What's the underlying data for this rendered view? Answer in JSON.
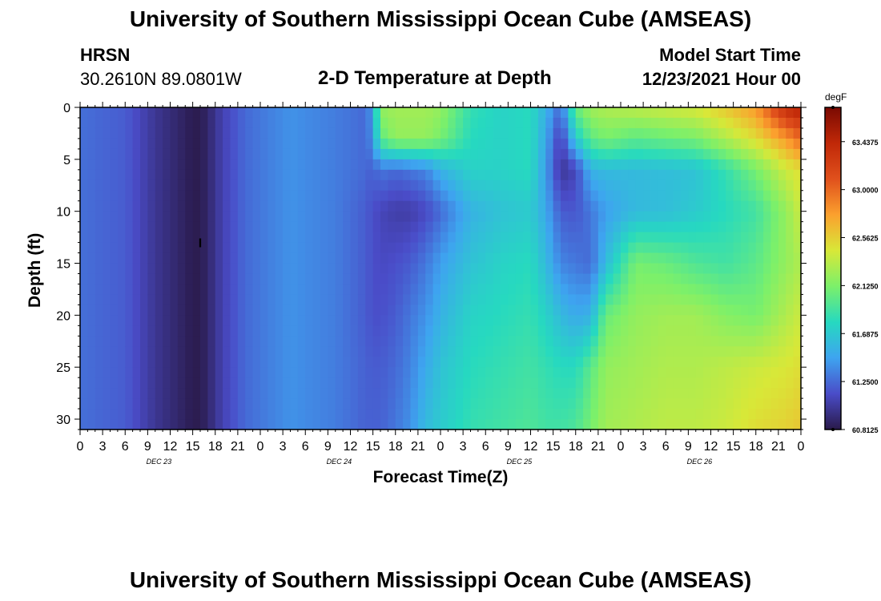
{
  "header": {
    "title": "University of Southern Mississippi Ocean Cube (AMSEAS)",
    "station_name": "HRSN",
    "station_coords": "30.2610N  89.0801W",
    "plot_title": "2-D Temperature at Depth",
    "model_start_label": "Model Start Time",
    "model_start_value": "12/23/2021 Hour 00"
  },
  "footer": {
    "title": "University of Southern Mississippi Ocean Cube (AMSEAS)"
  },
  "chart_data": {
    "type": "heatmap",
    "title": "2-D Temperature at Depth",
    "xlabel": "Forecast Time(Z)",
    "ylabel": "Depth (ft)",
    "x_hours_range": [
      0,
      96
    ],
    "x_tick_labels": [
      "0",
      "3",
      "6",
      "9",
      "12",
      "15",
      "18",
      "21",
      "0",
      "3",
      "6",
      "9",
      "12",
      "15",
      "18",
      "21",
      "0",
      "3",
      "6",
      "9",
      "12",
      "15",
      "18",
      "21",
      "0",
      "3",
      "6",
      "9",
      "12",
      "15",
      "18",
      "21",
      "0"
    ],
    "day_labels": [
      "DEC 23",
      "DEC 24",
      "DEC 25",
      "DEC 26"
    ],
    "y_range": [
      0,
      31
    ],
    "y_ticks": [
      0,
      5,
      10,
      15,
      20,
      25,
      30
    ],
    "colorbar": {
      "unit": "degF",
      "min": 60.8125,
      "max": 63.75,
      "tick_labels": [
        "60.8125",
        "61.2500",
        "61.6875",
        "62.1250",
        "62.5625",
        "63.0000",
        "63.4375"
      ],
      "colors": [
        "#2a1a4a",
        "#4a4cc8",
        "#3ea4f0",
        "#26d9c0",
        "#7cf06a",
        "#d8e838",
        "#fba02e",
        "#e0501c",
        "#c02808",
        "#7a0a02"
      ]
    },
    "marker": {
      "hour": 16,
      "depth_ft": 13,
      "label": "I"
    },
    "depth_levels_ft": [
      0,
      3,
      6,
      10,
      15,
      20,
      25,
      31
    ],
    "time_hours": [
      0,
      6,
      10,
      13,
      15,
      16,
      17,
      19,
      22,
      28,
      34,
      38,
      39,
      40,
      42,
      44,
      46,
      48,
      52,
      56,
      60,
      62,
      64,
      66,
      68,
      70,
      74,
      78,
      82,
      86,
      90,
      94,
      96
    ],
    "temperature_degF": [
      [
        61.27,
        61.27,
        61.27,
        61.27,
        61.27,
        61.27,
        61.27,
        61.27
      ],
      [
        61.2,
        61.2,
        61.2,
        61.2,
        61.2,
        61.2,
        61.2,
        61.2
      ],
      [
        61.0,
        61.0,
        61.0,
        61.0,
        61.0,
        61.0,
        61.0,
        61.0
      ],
      [
        60.9,
        60.9,
        60.9,
        60.9,
        60.9,
        60.9,
        60.9,
        60.9
      ],
      [
        60.83,
        60.83,
        60.83,
        60.83,
        60.83,
        60.83,
        60.83,
        60.83
      ],
      [
        60.83,
        60.83,
        60.83,
        60.83,
        60.83,
        60.83,
        60.83,
        60.83
      ],
      [
        60.9,
        60.9,
        60.9,
        60.9,
        60.9,
        60.9,
        60.9,
        60.9
      ],
      [
        61.08,
        61.08,
        61.08,
        61.08,
        61.08,
        61.08,
        61.08,
        61.08
      ],
      [
        61.25,
        61.25,
        61.25,
        61.25,
        61.25,
        61.25,
        61.25,
        61.25
      ],
      [
        61.4,
        61.4,
        61.4,
        61.4,
        61.4,
        61.4,
        61.4,
        61.4
      ],
      [
        61.32,
        61.32,
        61.32,
        61.32,
        61.32,
        61.32,
        61.32,
        61.32
      ],
      [
        61.25,
        61.25,
        61.25,
        61.2,
        61.2,
        61.2,
        61.22,
        61.22
      ],
      [
        61.45,
        61.4,
        61.2,
        61.15,
        61.15,
        61.15,
        61.2,
        61.22
      ],
      [
        62.2,
        62.0,
        61.3,
        61.1,
        61.12,
        61.15,
        61.2,
        61.22
      ],
      [
        62.25,
        62.2,
        61.25,
        61.05,
        61.15,
        61.2,
        61.25,
        61.3
      ],
      [
        62.25,
        62.2,
        61.3,
        61.05,
        61.2,
        61.3,
        61.35,
        61.4
      ],
      [
        62.25,
        62.2,
        61.35,
        61.12,
        61.3,
        61.4,
        61.5,
        61.6
      ],
      [
        62.2,
        62.1,
        61.55,
        61.25,
        61.45,
        61.55,
        61.65,
        61.7
      ],
      [
        61.85,
        61.8,
        61.75,
        61.55,
        61.65,
        61.75,
        61.8,
        61.85
      ],
      [
        61.75,
        61.75,
        61.75,
        61.65,
        61.75,
        61.8,
        61.85,
        61.9
      ],
      [
        61.8,
        61.8,
        61.8,
        61.7,
        61.8,
        61.85,
        61.9,
        61.95
      ],
      [
        61.55,
        61.5,
        61.45,
        61.5,
        61.6,
        61.75,
        61.85,
        61.9
      ],
      [
        61.25,
        61.05,
        61.0,
        61.2,
        61.35,
        61.6,
        61.8,
        61.9
      ],
      [
        62.05,
        61.7,
        61.1,
        61.18,
        61.3,
        61.5,
        61.8,
        61.95
      ],
      [
        62.25,
        62.0,
        61.55,
        61.3,
        61.25,
        61.55,
        62.0,
        62.1
      ],
      [
        62.3,
        62.1,
        61.6,
        61.45,
        61.6,
        62.05,
        62.2,
        62.25
      ],
      [
        62.35,
        62.0,
        61.6,
        61.6,
        62.1,
        62.2,
        62.25,
        62.3
      ],
      [
        62.4,
        62.05,
        61.62,
        61.62,
        62.05,
        62.25,
        62.3,
        62.35
      ],
      [
        62.45,
        62.1,
        61.65,
        61.7,
        61.95,
        62.25,
        62.3,
        62.35
      ],
      [
        62.6,
        62.3,
        61.85,
        61.8,
        61.9,
        62.15,
        62.35,
        62.4
      ],
      [
        62.8,
        62.5,
        62.1,
        61.9,
        62.0,
        62.1,
        62.4,
        62.5
      ],
      [
        63.4,
        62.8,
        62.4,
        62.2,
        62.2,
        62.3,
        62.45,
        62.55
      ],
      [
        63.5,
        63.0,
        62.5,
        62.4,
        62.3,
        62.4,
        62.5,
        62.6
      ]
    ]
  }
}
